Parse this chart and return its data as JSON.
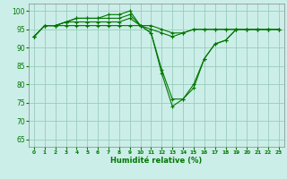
{
  "xlabel": "Humidité relative (%)",
  "background_color": "#cceee8",
  "grid_color": "#99ccbb",
  "line_color": "#007700",
  "xlim": [
    -0.5,
    23.5
  ],
  "ylim": [
    63,
    102
  ],
  "yticks": [
    65,
    70,
    75,
    80,
    85,
    90,
    95,
    100
  ],
  "xticks": [
    0,
    1,
    2,
    3,
    4,
    5,
    6,
    7,
    8,
    9,
    10,
    11,
    12,
    13,
    14,
    15,
    16,
    17,
    18,
    19,
    20,
    21,
    22,
    23
  ],
  "xtick_labels": [
    "0",
    "1",
    "2",
    "3",
    "4",
    "5",
    "6",
    "7",
    "8",
    "9",
    "10",
    "11",
    "12",
    "13",
    "14",
    "15",
    "16",
    "17",
    "18",
    "19",
    "20",
    "21",
    "22",
    "23"
  ],
  "series": [
    [
      93,
      96,
      96,
      97,
      98,
      98,
      98,
      98,
      98,
      99,
      96,
      94,
      83,
      74,
      76,
      79,
      87,
      91,
      92,
      95,
      95,
      95,
      95,
      95
    ],
    [
      93,
      96,
      96,
      97,
      98,
      98,
      98,
      99,
      99,
      100,
      96,
      94,
      84,
      76,
      76,
      80,
      87,
      91,
      92,
      95,
      95,
      95,
      95,
      95
    ],
    [
      93,
      96,
      96,
      97,
      97,
      97,
      97,
      97,
      97,
      98,
      96,
      95,
      94,
      93,
      94,
      95,
      95,
      95,
      95,
      95,
      95,
      95,
      95,
      95
    ],
    [
      93,
      96,
      96,
      96,
      96,
      96,
      96,
      96,
      96,
      96,
      96,
      96,
      95,
      94,
      94,
      95,
      95,
      95,
      95,
      95,
      95,
      95,
      95,
      95
    ]
  ]
}
